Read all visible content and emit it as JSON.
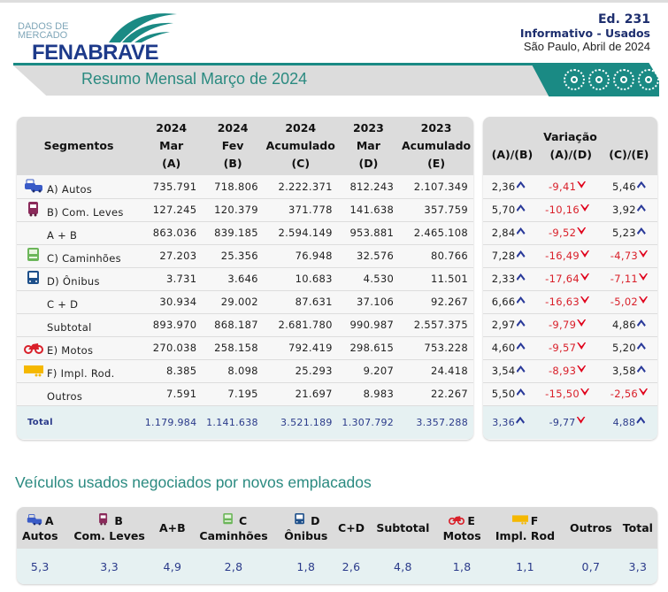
{
  "header": {
    "logo_small": "DADOS DE MERCADO",
    "logo_big": "FENABRAVE",
    "edition": "Ed. 231",
    "subtitle": "Informativo - Usados",
    "place_date": "São Paulo, Abril de 2024",
    "banner_title": "Resumo Mensal Março de 2024"
  },
  "colors": {
    "teal": "#1a8a84",
    "navy": "#1d2e6e",
    "negative": "#d9202a",
    "up_arrow": "#2a3a9a",
    "total_bg": "#e6f1f2"
  },
  "main_table": {
    "headers": [
      [
        "Segmentos"
      ],
      [
        "2024",
        "Mar",
        "(A)"
      ],
      [
        "2024",
        "Fev",
        "(B)"
      ],
      [
        "2024",
        "Acumulado",
        "(C)"
      ],
      [
        "2023",
        "Mar",
        "(D)"
      ],
      [
        "2023",
        "Acumulado",
        "(E)"
      ]
    ],
    "rows": [
      {
        "label": "A) Autos",
        "icon": "car-icon",
        "values": [
          "735.791",
          "718.806",
          "2.222.371",
          "812.243",
          "2.107.349"
        ]
      },
      {
        "label": "B) Com. Leves",
        "icon": "van-icon",
        "values": [
          "127.245",
          "120.379",
          "371.778",
          "141.638",
          "357.759"
        ]
      },
      {
        "label": "A + B",
        "icon": "",
        "values": [
          "863.036",
          "839.185",
          "2.594.149",
          "953.881",
          "2.465.108"
        ]
      },
      {
        "label": "C) Caminhões",
        "icon": "truck-icon",
        "values": [
          "27.203",
          "25.356",
          "76.948",
          "32.576",
          "80.766"
        ]
      },
      {
        "label": "D) Ônibus",
        "icon": "bus-icon",
        "values": [
          "3.731",
          "3.646",
          "10.683",
          "4.530",
          "11.501"
        ]
      },
      {
        "label": "C + D",
        "icon": "",
        "values": [
          "30.934",
          "29.002",
          "87.631",
          "37.106",
          "92.267"
        ]
      },
      {
        "label": "Subtotal",
        "icon": "",
        "values": [
          "893.970",
          "868.187",
          "2.681.780",
          "990.987",
          "2.557.375"
        ]
      },
      {
        "label": "E) Motos",
        "icon": "motorcycle-icon",
        "values": [
          "270.038",
          "258.158",
          "792.419",
          "298.615",
          "753.228"
        ]
      },
      {
        "label": "F) Impl. Rod.",
        "icon": "trailer-icon",
        "values": [
          "8.385",
          "8.098",
          "25.293",
          "9.207",
          "24.418"
        ]
      },
      {
        "label": "Outros",
        "icon": "",
        "values": [
          "7.591",
          "7.195",
          "21.697",
          "8.983",
          "22.267"
        ]
      }
    ],
    "total": {
      "label": "Total",
      "values": [
        "1.179.984",
        "1.141.638",
        "3.521.189",
        "1.307.792",
        "3.357.288"
      ]
    }
  },
  "variation_table": {
    "title": "Variação",
    "headers": [
      "(A)/(B)",
      "(A)/(D)",
      "(C)/(E)"
    ],
    "rows": [
      [
        "2,36",
        "-9,41",
        "5,46"
      ],
      [
        "5,70",
        "-10,16",
        "3,92"
      ],
      [
        "2,84",
        "-9,52",
        "5,23"
      ],
      [
        "7,28",
        "-16,49",
        "-4,73"
      ],
      [
        "2,33",
        "-17,64",
        "-7,11"
      ],
      [
        "6,66",
        "-16,63",
        "-5,02"
      ],
      [
        "2,97",
        "-9,79",
        "4,86"
      ],
      [
        "4,60",
        "-9,57",
        "5,20"
      ],
      [
        "3,54",
        "-8,93",
        "3,58"
      ],
      [
        "5,50",
        "-15,50",
        "-2,56"
      ]
    ],
    "total": [
      "3,36",
      "-9,77",
      "4,88"
    ]
  },
  "ratio_section": {
    "title": "Veículos usados negociados por novos emplacados",
    "columns": [
      {
        "top": "A",
        "bottom": "Autos",
        "icon": "car-icon",
        "value": "5,3"
      },
      {
        "top": "B",
        "bottom": "Com. Leves",
        "icon": "van-icon",
        "value": "3,3"
      },
      {
        "top": "A+B",
        "bottom": "",
        "icon": "",
        "value": "4,9"
      },
      {
        "top": "C",
        "bottom": "Caminhões",
        "icon": "truck-icon",
        "value": "2,8"
      },
      {
        "top": "D",
        "bottom": "Ônibus",
        "icon": "bus-icon",
        "value": "1,8"
      },
      {
        "top": "C+D",
        "bottom": "",
        "icon": "",
        "value": "2,6"
      },
      {
        "top": "Subtotal",
        "bottom": "",
        "icon": "",
        "value": "4,8"
      },
      {
        "top": "E",
        "bottom": "Motos",
        "icon": "motorcycle-icon",
        "value": "1,8"
      },
      {
        "top": "F",
        "bottom": "Impl. Rod",
        "icon": "trailer-icon",
        "value": "1,1"
      },
      {
        "top": "Outros",
        "bottom": "",
        "icon": "",
        "value": "0,7"
      },
      {
        "top": "Total",
        "bottom": "",
        "icon": "",
        "value": "3,3"
      }
    ]
  }
}
